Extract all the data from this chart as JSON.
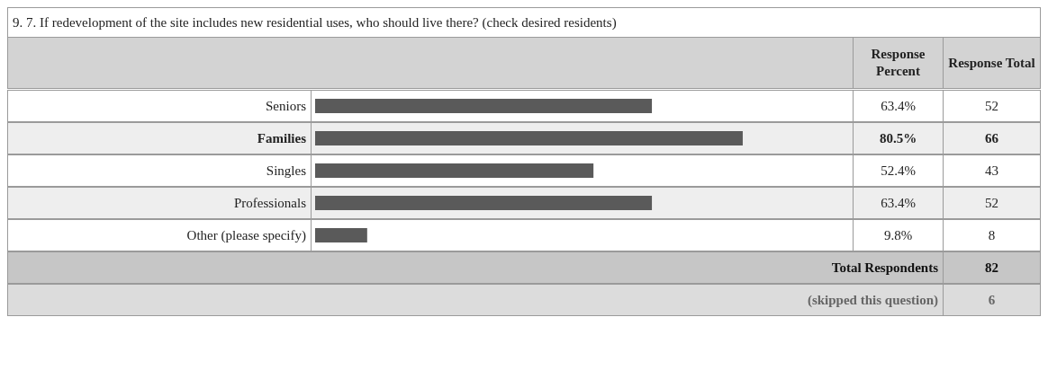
{
  "chart_data": {
    "type": "bar",
    "orientation": "horizontal",
    "title": "9. 7. If redevelopment of the site includes new residential uses, who should live there? (check desired residents)",
    "categories": [
      "Seniors",
      "Families",
      "Singles",
      "Professionals",
      "Other (please specify)"
    ],
    "values": [
      63.4,
      80.5,
      52.4,
      63.4,
      9.8
    ],
    "value_labels": [
      "63.4%",
      "80.5%",
      "52.4%",
      "63.4%",
      "9.8%"
    ],
    "color": "#5a5a5a",
    "annotations": [
      "Response Percent",
      "Response Total",
      "52",
      "66",
      "43",
      "52",
      "8",
      "Total Respondents",
      "82",
      "(skipped this question)",
      "6"
    ]
  }
}
